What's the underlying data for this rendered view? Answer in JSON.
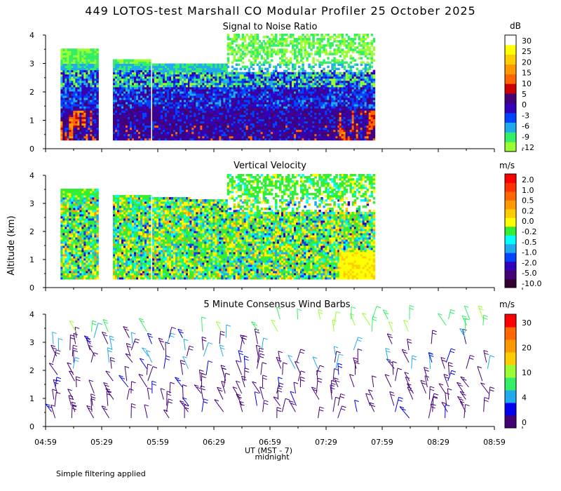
{
  "title": "449 LOTOS-test Marshall CO Modular Profiler 25 October 2025",
  "ylabel": "Altitude (km)",
  "xlabel": "UT (MST - 7)",
  "midnight_label": "midnight",
  "footnote": "Simple filtering applied",
  "x_ticks": [
    "04:59",
    "05:29",
    "05:59",
    "06:29",
    "06:59",
    "07:29",
    "07:59",
    "08:29",
    "08:59"
  ],
  "y_ticks": [
    "0",
    "1",
    "2",
    "3",
    "4"
  ],
  "colors": {
    "snr": [
      "#99ff33",
      "#33ee66",
      "#22aaee",
      "#0044ff",
      "#3300bb",
      "#440077",
      "#cc0000",
      "#ff6600",
      "#ff9900",
      "#ffcc00",
      "#ffff00",
      "#ffffff"
    ],
    "vel": [
      "#330033",
      "#440077",
      "#3300bb",
      "#0044ff",
      "#22aaee",
      "#00ffff",
      "#33ee33",
      "#ffff00",
      "#ffcc00",
      "#ff9900",
      "#ff6600",
      "#ff3300",
      "#ff0000"
    ],
    "wind": [
      "#440077",
      "#0000ee",
      "#22aaee",
      "#33ee66",
      "#99ff33",
      "#ffcc00",
      "#ff9900",
      "#ff6600",
      "#ff0000"
    ]
  },
  "chart_data": [
    {
      "type": "heatmap",
      "title": "Signal to Noise Ratio",
      "unit": "dB",
      "xlim": [
        0,
        240
      ],
      "ylim": [
        0,
        4
      ],
      "colorbar_labels": [
        "30",
        "25",
        "20",
        "15",
        "10",
        "5",
        "0",
        "-3",
        "-6",
        "-9",
        "-12"
      ],
      "profile_blocks_min": [
        [
          8,
          28
        ],
        [
          36,
          56
        ],
        [
          57,
          77
        ],
        [
          77,
          97
        ],
        [
          97,
          117
        ],
        [
          117,
          137
        ],
        [
          137,
          157
        ],
        [
          157,
          176
        ]
      ],
      "profile_top_km": [
        3.5,
        3.15,
        3.0,
        3.0,
        4.0,
        4.0,
        4.0,
        4.0
      ],
      "bottom_km": 0.3
    },
    {
      "type": "heatmap",
      "title": "Vertical Velocity",
      "unit": "m/s",
      "xlim": [
        0,
        240
      ],
      "ylim": [
        0,
        4
      ],
      "colorbar_labels": [
        "2.0",
        "1.0",
        "0.5",
        "0.2",
        "0.0",
        "-0.2",
        "-0.5",
        "-1.0",
        "-2.0",
        "-5.0",
        "-10.0"
      ],
      "profile_blocks_min": [
        [
          8,
          28
        ],
        [
          36,
          56
        ],
        [
          57,
          77
        ],
        [
          77,
          97
        ],
        [
          97,
          117
        ],
        [
          117,
          137
        ],
        [
          137,
          157
        ],
        [
          157,
          176
        ]
      ],
      "profile_top_km": [
        3.5,
        3.3,
        3.2,
        3.1,
        4.0,
        4.0,
        4.0,
        4.0
      ],
      "bottom_km": 0.3
    },
    {
      "type": "scatter",
      "title": "5 Minute Consensus Wind Barbs",
      "unit": "m/s",
      "xlim": [
        0,
        240
      ],
      "ylim": [
        0,
        4
      ],
      "colorbar_labels": [
        "30",
        "20",
        "10",
        "4",
        "0"
      ],
      "barb_times_min": [
        5,
        15,
        25,
        35,
        45,
        55,
        65,
        75,
        85,
        95,
        105,
        115,
        125,
        135,
        145,
        155,
        165,
        175,
        185,
        195,
        205,
        215,
        225,
        235
      ]
    }
  ]
}
